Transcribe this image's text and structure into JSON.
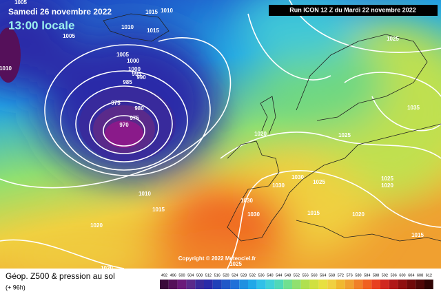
{
  "header": {
    "date": "Samedi 26 novembre 2022",
    "time": "13:00 locale",
    "run": "Run ICON 12 Z du Mardi 22 novembre 2022"
  },
  "copyright": "Copyright © 2022 Meteociel.fr",
  "footer": {
    "title": "Géop. Z500 & pression au sol",
    "lead": "(+ 96h)"
  },
  "colorbar": {
    "ticks": [
      492,
      496,
      500,
      504,
      508,
      512,
      516,
      520,
      524,
      528,
      532,
      536,
      540,
      544,
      548,
      552,
      556,
      560,
      564,
      568,
      572,
      576,
      580,
      584,
      588,
      592,
      596,
      600,
      604,
      608,
      612
    ],
    "colors": [
      "#3a0a3a",
      "#55105a",
      "#6a1a7a",
      "#5a2a8a",
      "#3a2a9a",
      "#2a2aa8",
      "#2040b8",
      "#2058c8",
      "#2070d8",
      "#2090e0",
      "#20a8e8",
      "#30c0e8",
      "#40d0d8",
      "#50d8b8",
      "#70e090",
      "#90e070",
      "#b0e050",
      "#d0e040",
      "#e8e040",
      "#f0d040",
      "#f0b830",
      "#f0a030",
      "#f08028",
      "#f06020",
      "#e84020",
      "#d02820",
      "#b01818",
      "#901010",
      "#700a0a",
      "#500808",
      "#300404"
    ]
  },
  "isobars": [
    1015,
    1010,
    1005,
    1010,
    1015,
    1005,
    1010,
    1005,
    1000,
    1000,
    995,
    990,
    985,
    975,
    980,
    975,
    970,
    1025,
    1035,
    1025,
    1020,
    1030,
    1025,
    1030,
    1025,
    1020,
    1010,
    1015,
    1030,
    1030,
    1015,
    1020,
    1015,
    1020,
    1025,
    1020
  ]
}
